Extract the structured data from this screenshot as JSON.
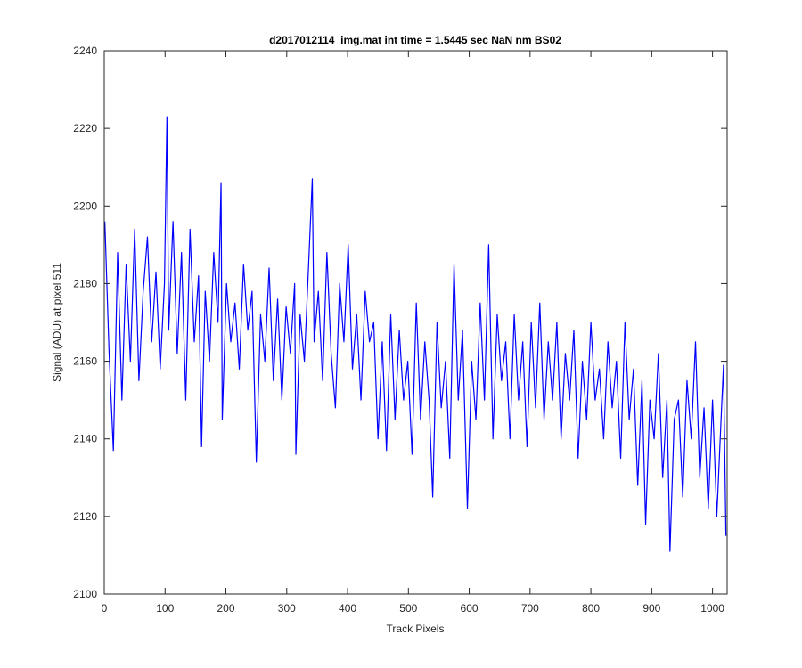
{
  "chart_data": {
    "type": "line",
    "title": "d2017012114_img.mat int time = 1.5445 sec  NaN nm BS02",
    "xlabel": "Track Pixels",
    "ylabel": "Signal (ADU) at pixel 511",
    "xlim": [
      0,
      1024
    ],
    "ylim": [
      2100,
      2240
    ],
    "xticks": [
      0,
      100,
      200,
      300,
      400,
      500,
      600,
      700,
      800,
      900,
      1000
    ],
    "yticks": [
      2100,
      2120,
      2140,
      2160,
      2180,
      2200,
      2220,
      2240
    ],
    "x": [
      1,
      8,
      15,
      22,
      29,
      36,
      43,
      50,
      57,
      64,
      71,
      78,
      85,
      92,
      99,
      103,
      106,
      113,
      120,
      127,
      134,
      141,
      148,
      155,
      160,
      166,
      173,
      180,
      187,
      192,
      194,
      201,
      208,
      215,
      222,
      229,
      236,
      243,
      250,
      257,
      264,
      271,
      278,
      285,
      292,
      299,
      306,
      313,
      315,
      322,
      329,
      336,
      342,
      345,
      352,
      359,
      366,
      373,
      380,
      387,
      394,
      401,
      408,
      415,
      422,
      429,
      436,
      443,
      450,
      457,
      464,
      471,
      478,
      485,
      492,
      499,
      506,
      513,
      520,
      527,
      534,
      540,
      547,
      554,
      561,
      568,
      575,
      582,
      589,
      597,
      604,
      611,
      618,
      625,
      632,
      639,
      646,
      653,
      660,
      667,
      674,
      681,
      688,
      695,
      702,
      709,
      716,
      723,
      730,
      737,
      744,
      751,
      758,
      765,
      772,
      779,
      786,
      793,
      800,
      807,
      814,
      821,
      828,
      835,
      842,
      849,
      856,
      863,
      870,
      877,
      884,
      890,
      897,
      904,
      911,
      918,
      925,
      930,
      937,
      944,
      951,
      958,
      965,
      972,
      979,
      986,
      993,
      1000,
      1007,
      1014,
      1018,
      1022
    ],
    "series": [
      {
        "name": "signal",
        "color": "#0000ff",
        "values": [
          2196,
          2162,
          2137,
          2188,
          2150,
          2185,
          2160,
          2194,
          2155,
          2178,
          2192,
          2165,
          2183,
          2158,
          2180,
          2223,
          2168,
          2196,
          2162,
          2188,
          2150,
          2194,
          2165,
          2182,
          2138,
          2178,
          2160,
          2188,
          2170,
          2206,
          2145,
          2180,
          2165,
          2175,
          2158,
          2185,
          2168,
          2178,
          2134,
          2172,
          2160,
          2184,
          2155,
          2176,
          2150,
          2174,
          2162,
          2180,
          2136,
          2172,
          2160,
          2185,
          2207,
          2165,
          2178,
          2155,
          2188,
          2162,
          2148,
          2180,
          2165,
          2190,
          2158,
          2172,
          2150,
          2178,
          2165,
          2170,
          2140,
          2165,
          2137,
          2172,
          2145,
          2168,
          2150,
          2160,
          2136,
          2175,
          2145,
          2165,
          2150,
          2125,
          2170,
          2148,
          2160,
          2135,
          2185,
          2150,
          2168,
          2122,
          2160,
          2145,
          2175,
          2150,
          2190,
          2140,
          2172,
          2155,
          2165,
          2140,
          2172,
          2150,
          2165,
          2138,
          2170,
          2148,
          2175,
          2145,
          2165,
          2150,
          2170,
          2140,
          2162,
          2150,
          2168,
          2135,
          2160,
          2145,
          2170,
          2150,
          2158,
          2140,
          2165,
          2148,
          2160,
          2135,
          2170,
          2145,
          2158,
          2128,
          2155,
          2118,
          2150,
          2140,
          2162,
          2130,
          2150,
          2111,
          2145,
          2150,
          2125,
          2155,
          2140,
          2165,
          2130,
          2148,
          2122,
          2150,
          2120,
          2145,
          2159,
          2115
        ]
      }
    ]
  }
}
